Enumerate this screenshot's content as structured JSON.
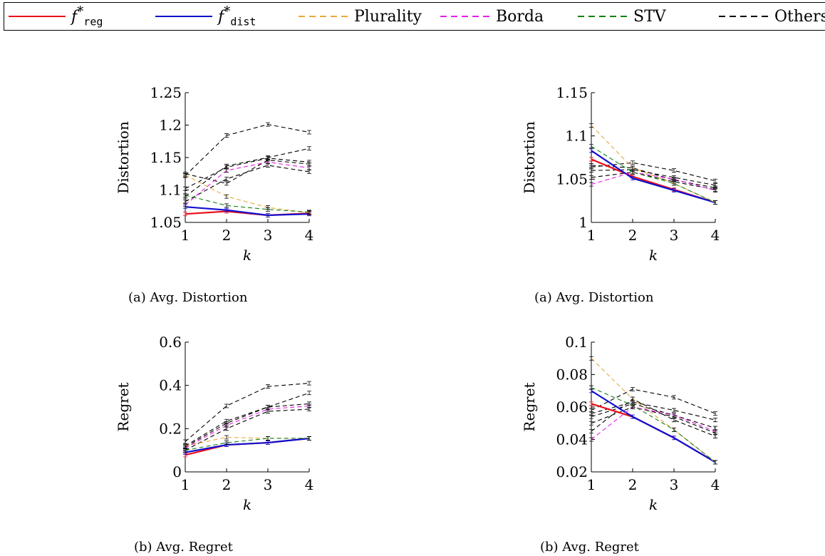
{
  "legend": {
    "items": [
      {
        "key": "freg",
        "base": "f",
        "sup": "*",
        "sub": "reg",
        "color": "#e8101b",
        "dash": "solid"
      },
      {
        "key": "fdist",
        "base": "f",
        "sup": "*",
        "sub": "dist",
        "color": "#1010d0",
        "dash": "solid"
      },
      {
        "key": "plurality",
        "label": "Plurality",
        "color": "#e8a93a",
        "dash": "dashed"
      },
      {
        "key": "borda",
        "label": "Borda",
        "color": "#e81ee8",
        "dash": "dashed"
      },
      {
        "key": "stv",
        "label": "STV",
        "color": "#148014",
        "dash": "dashed"
      },
      {
        "key": "others",
        "label": "Others",
        "color": "#000000",
        "dash": "dashed"
      }
    ]
  },
  "captions": {
    "c1": "(a) Avg. Distortion",
    "c2": "(a) Avg. Distortion",
    "c3": "(b) Avg. Regret",
    "c4": "(b) Avg. Regret"
  },
  "chart_data": [
    {
      "type": "line",
      "xlabel": "k",
      "ylabel": "Distortion",
      "x": [
        1,
        2,
        3,
        4
      ],
      "ylim": [
        1.05,
        1.25
      ],
      "yticks": [
        1.05,
        1.1,
        1.15,
        1.2,
        1.25
      ],
      "ytick_labels": [
        "1.05",
        "1.1",
        "1.15",
        "1.2",
        "1.25"
      ],
      "series": [
        {
          "name": "freg",
          "values": [
            1.063,
            1.067,
            1.061,
            1.064
          ]
        },
        {
          "name": "fdist",
          "values": [
            1.074,
            1.069,
            1.061,
            1.063
          ]
        },
        {
          "name": "Plurality",
          "values": [
            1.123,
            1.09,
            1.073,
            1.065
          ]
        },
        {
          "name": "Borda",
          "values": [
            1.077,
            1.13,
            1.143,
            1.134
          ]
        },
        {
          "name": "STV",
          "values": [
            1.092,
            1.076,
            1.07,
            1.066
          ]
        },
        {
          "name": "Others",
          "values": [
            1.122,
            1.184,
            1.201,
            1.189
          ]
        },
        {
          "name": "Others",
          "values": [
            1.09,
            1.137,
            1.15,
            1.164
          ]
        },
        {
          "name": "Others",
          "values": [
            1.102,
            1.135,
            1.149,
            1.143
          ]
        },
        {
          "name": "Others",
          "values": [
            1.082,
            1.117,
            1.138,
            1.128
          ]
        },
        {
          "name": "Others",
          "values": [
            1.125,
            1.11,
            1.146,
            1.14
          ]
        }
      ]
    },
    {
      "type": "line",
      "xlabel": "k",
      "ylabel": "Distortion",
      "x": [
        1,
        2,
        3,
        4
      ],
      "ylim": [
        1.0,
        1.15
      ],
      "yticks": [
        1.0,
        1.05,
        1.1,
        1.15
      ],
      "ytick_labels": [
        "1",
        "1.05",
        "1.1",
        "1.15"
      ],
      "series": [
        {
          "name": "freg",
          "values": [
            1.073,
            1.053,
            1.038,
            1.023
          ]
        },
        {
          "name": "fdist",
          "values": [
            1.083,
            1.051,
            1.037,
            1.023
          ]
        },
        {
          "name": "Plurality",
          "values": [
            1.112,
            1.063,
            1.045,
            1.023
          ]
        },
        {
          "name": "Borda",
          "values": [
            1.044,
            1.058,
            1.05,
            1.037
          ]
        },
        {
          "name": "STV",
          "values": [
            1.088,
            1.058,
            1.045,
            1.023
          ]
        },
        {
          "name": "Others",
          "values": [
            1.064,
            1.069,
            1.06,
            1.048
          ]
        },
        {
          "name": "Others",
          "values": [
            1.06,
            1.061,
            1.052,
            1.043
          ]
        },
        {
          "name": "Others",
          "values": [
            1.066,
            1.063,
            1.049,
            1.04
          ]
        },
        {
          "name": "Others",
          "values": [
            1.052,
            1.058,
            1.047,
            1.038
          ]
        }
      ]
    },
    {
      "type": "line",
      "xlabel": "k",
      "ylabel": "Regret",
      "x": [
        1,
        2,
        3,
        4
      ],
      "ylim": [
        0,
        0.6
      ],
      "yticks": [
        0,
        0.2,
        0.4,
        0.6
      ],
      "ytick_labels": [
        "0",
        "0.2",
        "0.4",
        "0.6"
      ],
      "series": [
        {
          "name": "freg",
          "values": [
            0.078,
            0.125,
            0.135,
            0.155
          ]
        },
        {
          "name": "fdist",
          "values": [
            0.09,
            0.125,
            0.135,
            0.155
          ]
        },
        {
          "name": "Plurality",
          "values": [
            0.12,
            0.16,
            0.155,
            0.155
          ]
        },
        {
          "name": "Borda",
          "values": [
            0.11,
            0.215,
            0.29,
            0.305
          ]
        },
        {
          "name": "STV",
          "values": [
            0.1,
            0.135,
            0.155,
            0.155
          ]
        },
        {
          "name": "Others",
          "values": [
            0.14,
            0.305,
            0.395,
            0.41
          ]
        },
        {
          "name": "Others",
          "values": [
            0.12,
            0.235,
            0.3,
            0.365
          ]
        },
        {
          "name": "Others",
          "values": [
            0.115,
            0.225,
            0.3,
            0.315
          ]
        },
        {
          "name": "Others",
          "values": [
            0.1,
            0.2,
            0.28,
            0.29
          ]
        }
      ]
    },
    {
      "type": "line",
      "xlabel": "k",
      "ylabel": "Regret",
      "x": [
        1,
        2,
        3,
        4
      ],
      "ylim": [
        0.02,
        0.1
      ],
      "yticks": [
        0.02,
        0.04,
        0.06,
        0.08,
        0.1
      ],
      "ytick_labels": [
        "0.02",
        "0.04",
        "0.06",
        "0.08",
        "0.1"
      ],
      "series": [
        {
          "name": "freg",
          "values": [
            0.062,
            0.054,
            0.041,
            0.026
          ]
        },
        {
          "name": "fdist",
          "values": [
            0.07,
            0.054,
            0.041,
            0.026
          ]
        },
        {
          "name": "Plurality",
          "values": [
            0.09,
            0.065,
            0.046,
            0.026
          ]
        },
        {
          "name": "Borda",
          "values": [
            0.04,
            0.06,
            0.055,
            0.045
          ]
        },
        {
          "name": "STV",
          "values": [
            0.072,
            0.061,
            0.046,
            0.026
          ]
        },
        {
          "name": "Others",
          "values": [
            0.058,
            0.071,
            0.066,
            0.056
          ]
        },
        {
          "name": "Others",
          "values": [
            0.056,
            0.063,
            0.058,
            0.052
          ]
        },
        {
          "name": "Others",
          "values": [
            0.054,
            0.062,
            0.055,
            0.047
          ]
        },
        {
          "name": "Others",
          "values": [
            0.05,
            0.06,
            0.054,
            0.044
          ]
        },
        {
          "name": "Others",
          "values": [
            0.045,
            0.065,
            0.052,
            0.042
          ]
        }
      ]
    }
  ]
}
